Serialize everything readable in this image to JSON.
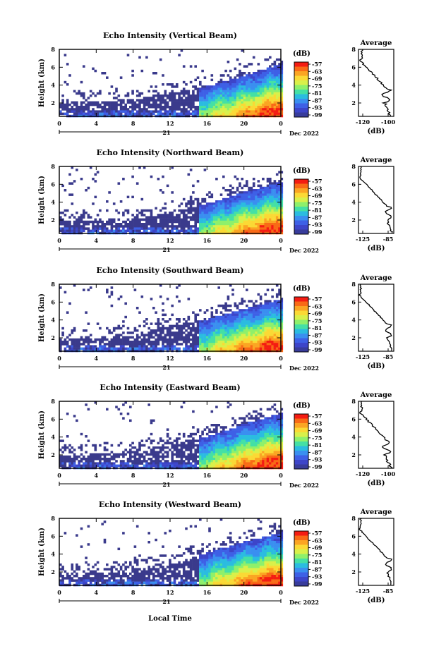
{
  "x_axis": {
    "ticks": [
      "0",
      "4",
      "8",
      "12",
      "16",
      "20",
      "0"
    ],
    "day_label": "21",
    "date_label": "Dec 2022",
    "xlabel": "Local Time"
  },
  "y_axis": {
    "label": "Height (km)",
    "ticks": [
      "2",
      "4",
      "6",
      "8"
    ]
  },
  "colorbar": {
    "unit": "(dB)",
    "labels": [
      "-57",
      "-63",
      "-69",
      "-75",
      "-81",
      "-87",
      "-93",
      "-99"
    ],
    "colors": [
      "#f41c12",
      "#f96a16",
      "#fba523",
      "#fbd935",
      "#d9f04a",
      "#8ef06b",
      "#44e0a5",
      "#2bbce0",
      "#3a8ff0",
      "#3e60e6",
      "#3d45c9",
      "#383c9b"
    ]
  },
  "profile": {
    "title": "Average",
    "xlabel": "(dB)"
  },
  "chart_data": [
    {
      "type": "heatmap",
      "title": "Echo Intensity (Vertical Beam)",
      "xlabel": "",
      "ylabel": "Height (km)",
      "x_range": [
        0,
        24
      ],
      "ylim": [
        0.5,
        8
      ],
      "colorbar_range": [
        -99,
        -57
      ],
      "echo_top_km": [
        [
          0,
          2.2
        ],
        [
          8,
          2.5
        ],
        [
          12,
          3.2
        ],
        [
          16,
          4
        ],
        [
          20,
          5.2
        ],
        [
          24,
          6.5
        ]
      ],
      "profile": {
        "title": "Average",
        "xticks": [
          "-120",
          "-100"
        ],
        "xlim": [
          -122,
          -90
        ]
      }
    },
    {
      "type": "heatmap",
      "title": "Echo Intensity (Northward Beam)",
      "xlabel": "",
      "ylabel": "Height (km)",
      "x_range": [
        0,
        24
      ],
      "ylim": [
        0.5,
        8
      ],
      "colorbar_range": [
        -99,
        -57
      ],
      "echo_top_km": [
        [
          0,
          2.0
        ],
        [
          8,
          2.2
        ],
        [
          12,
          3.0
        ],
        [
          16,
          4
        ],
        [
          20,
          5.3
        ],
        [
          24,
          6.4
        ]
      ],
      "profile": {
        "title": "Average",
        "xticks": [
          "-125",
          "-85"
        ],
        "xlim": [
          -128,
          -82
        ]
      }
    },
    {
      "type": "heatmap",
      "title": "Echo Intensity (Southward Beam)",
      "xlabel": "",
      "ylabel": "Height (km)",
      "x_range": [
        0,
        24
      ],
      "ylim": [
        0.5,
        8
      ],
      "colorbar_range": [
        -99,
        -57
      ],
      "echo_top_km": [
        [
          0,
          2.0
        ],
        [
          8,
          2.3
        ],
        [
          12,
          3.5
        ],
        [
          16,
          4.2
        ],
        [
          20,
          5.4
        ],
        [
          24,
          6.5
        ]
      ],
      "profile": {
        "title": "Average",
        "xticks": [
          "-125",
          "-85"
        ],
        "xlim": [
          -128,
          -82
        ]
      }
    },
    {
      "type": "heatmap",
      "title": "Echo Intensity (Eastward Beam)",
      "xlabel": "",
      "ylabel": "Height (km)",
      "x_range": [
        0,
        24
      ],
      "ylim": [
        0.5,
        8
      ],
      "colorbar_range": [
        -99,
        -57
      ],
      "echo_top_km": [
        [
          0,
          2.0
        ],
        [
          8,
          2.5
        ],
        [
          12,
          3.2
        ],
        [
          16,
          4.2
        ],
        [
          20,
          5.6
        ],
        [
          24,
          6.8
        ]
      ],
      "profile": {
        "title": "Average",
        "xticks": [
          "-120",
          "-100"
        ],
        "xlim": [
          -122,
          -90
        ]
      }
    },
    {
      "type": "heatmap",
      "title": "Echo Intensity (Westward Beam)",
      "xlabel": "Local Time",
      "ylabel": "Height (km)",
      "x_range": [
        0,
        24
      ],
      "ylim": [
        0.5,
        8
      ],
      "colorbar_range": [
        -99,
        -57
      ],
      "echo_top_km": [
        [
          0,
          1.8
        ],
        [
          8,
          2.2
        ],
        [
          12,
          3.0
        ],
        [
          16,
          4.3
        ],
        [
          20,
          5.5
        ],
        [
          24,
          6.5
        ]
      ],
      "profile": {
        "title": "Average",
        "xticks": [
          "-125",
          "-85"
        ],
        "xlim": [
          -128,
          -82
        ]
      }
    }
  ]
}
